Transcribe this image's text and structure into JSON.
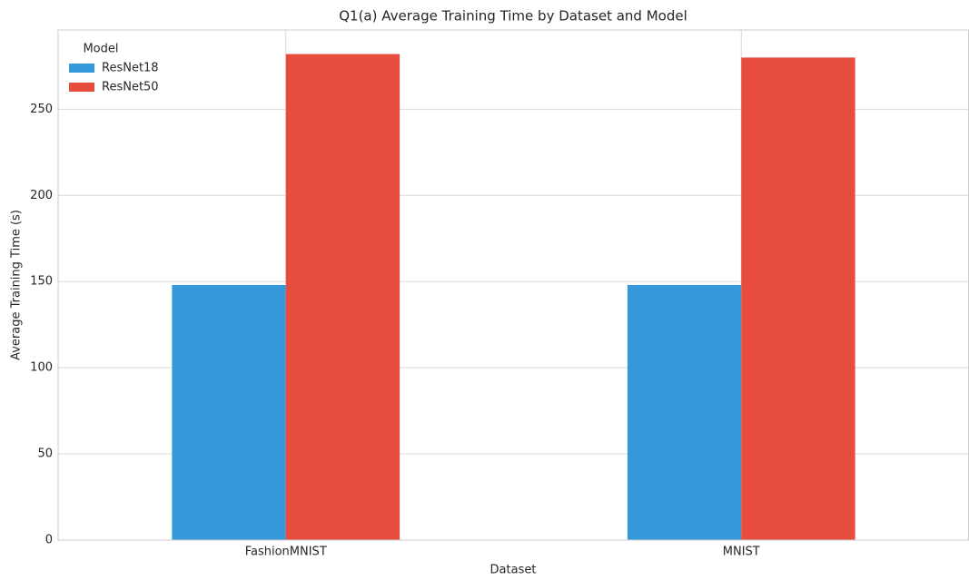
{
  "chart_data": {
    "type": "bar",
    "title": "Q1(a) Average Training Time by Dataset and Model",
    "x_label": "Dataset",
    "y_label": "Average Training Time (s)",
    "categories": [
      "FashionMNIST",
      "MNIST"
    ],
    "series": [
      {
        "name": "ResNet18",
        "color": "#3498db",
        "values": [
          148,
          148
        ]
      },
      {
        "name": "ResNet50",
        "color": "#e74c3c",
        "values": [
          282,
          280
        ]
      }
    ],
    "legend_title": "Model",
    "legend": "upper left",
    "ylim": [
      0,
      296
    ],
    "yticks": [
      0,
      50,
      100,
      150,
      200,
      250
    ],
    "grid": true
  }
}
